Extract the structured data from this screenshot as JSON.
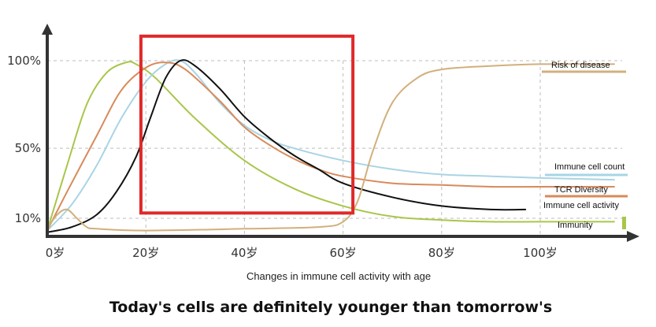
{
  "chart_data": {
    "type": "line",
    "xlabel": "Changes in immune cell activity with age",
    "ylabel": "",
    "xlim": [
      0,
      115
    ],
    "ylim": [
      0,
      110
    ],
    "grid": true,
    "x_ticks": [
      {
        "value": 0,
        "label": "0岁"
      },
      {
        "value": 20,
        "label": "20岁"
      },
      {
        "value": 40,
        "label": "40岁"
      },
      {
        "value": 60,
        "label": "60岁"
      },
      {
        "value": 80,
        "label": "80岁"
      },
      {
        "value": 100,
        "label": "100岁"
      }
    ],
    "y_ticks": [
      {
        "value": 10,
        "label": "10%"
      },
      {
        "value": 50,
        "label": "50%"
      },
      {
        "value": 100,
        "label": "100%"
      }
    ],
    "series": [
      {
        "name": "Immunity",
        "color": "#a8c64a",
        "x": [
          0,
          4,
          8,
          12,
          16,
          18,
          22,
          30,
          40,
          50,
          60,
          70,
          80,
          90,
          100,
          115
        ],
        "y": [
          3,
          40,
          75,
          93,
          99,
          98,
          90,
          67,
          43,
          27,
          17,
          11,
          9,
          8,
          8,
          8
        ]
      },
      {
        "name": "Immune cell count",
        "color": "#a9d4e4",
        "x": [
          0,
          5,
          10,
          15,
          20,
          24,
          27,
          30,
          35,
          40,
          45,
          50,
          60,
          70,
          80,
          90,
          100,
          115
        ],
        "y": [
          3,
          18,
          40,
          67,
          88,
          98,
          100,
          93,
          76,
          63,
          55,
          50,
          43,
          38,
          35,
          34,
          33,
          32
        ]
      },
      {
        "name": "TCR Diversity",
        "color": "#d88a5a",
        "x": [
          0,
          4,
          10,
          15,
          20,
          24,
          28,
          35,
          40,
          45,
          50,
          55,
          60,
          70,
          80,
          90,
          100,
          115
        ],
        "y": [
          3,
          25,
          57,
          83,
          96,
          99,
          95,
          77,
          62,
          52,
          44,
          38,
          34,
          30,
          29,
          28,
          28,
          28
        ]
      },
      {
        "name": "Immune cell activity",
        "color": "#111111",
        "x": [
          0,
          5,
          10,
          14,
          18,
          21,
          24,
          27,
          30,
          35,
          40,
          45,
          50,
          55,
          60,
          70,
          80,
          90,
          97
        ],
        "y": [
          2,
          5,
          12,
          25,
          45,
          68,
          90,
          100,
          97,
          84,
          68,
          56,
          46,
          38,
          30,
          22,
          17,
          15,
          15
        ]
      },
      {
        "name": "Risk of disease",
        "color": "#d1b07c",
        "x": [
          0,
          2,
          4,
          6,
          8,
          10,
          20,
          40,
          55,
          60,
          63,
          66,
          70,
          75,
          80,
          90,
          100,
          115
        ],
        "y": [
          4,
          12,
          15,
          10,
          5,
          4,
          3,
          4,
          5,
          8,
          20,
          48,
          76,
          90,
          95,
          97,
          98,
          98
        ]
      }
    ],
    "legend": {
      "placement": "right"
    },
    "highlight": {
      "label": "",
      "x_range": [
        19,
        62
      ],
      "y_range": [
        13,
        114
      ],
      "color": "#e0292a"
    }
  },
  "caption": "Today's cells are definitely younger than tomorrow's"
}
